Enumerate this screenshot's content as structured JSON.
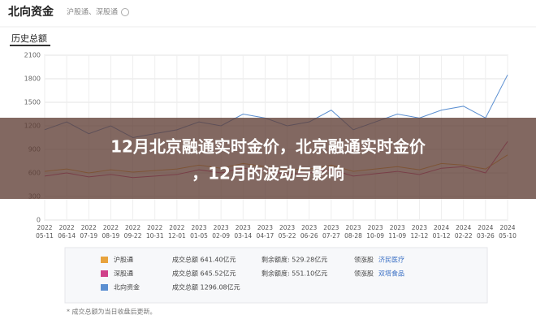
{
  "header": {
    "title": "北向资金",
    "subtitle": "沪股通、深股通",
    "section": "历史总额"
  },
  "chart_data": {
    "type": "line",
    "categories": [
      [
        "2022",
        "05-11"
      ],
      [
        "2022",
        "06-14"
      ],
      [
        "2022",
        "07-19"
      ],
      [
        "2022",
        "08-19"
      ],
      [
        "2022",
        "09-22"
      ],
      [
        "2022",
        "10-31"
      ],
      [
        "2022",
        "12-01"
      ],
      [
        "2023",
        "01-05"
      ],
      [
        "2023",
        "02-09"
      ],
      [
        "2023",
        "03-14"
      ],
      [
        "2023",
        "04-17"
      ],
      [
        "2023",
        "05-22"
      ],
      [
        "2023",
        "06-26"
      ],
      [
        "2023",
        "07-27"
      ],
      [
        "2023",
        "08-28"
      ],
      [
        "2023",
        "10-09"
      ],
      [
        "2023",
        "11-09"
      ],
      [
        "2023",
        "12-12"
      ],
      [
        "2024",
        "01-12"
      ],
      [
        "2024",
        "02-22"
      ],
      [
        "2024",
        "03-26"
      ],
      [
        "2024",
        "05-10"
      ]
    ],
    "series": [
      {
        "name": "沪股通",
        "color": "#e8a33d",
        "values": [
          620,
          650,
          600,
          640,
          610,
          630,
          650,
          700,
          660,
          720,
          680,
          640,
          650,
          700,
          620,
          650,
          680,
          640,
          720,
          700,
          650,
          830
        ]
      },
      {
        "name": "深股通",
        "color": "#d0418a",
        "values": [
          560,
          600,
          550,
          580,
          540,
          560,
          580,
          640,
          600,
          660,
          630,
          580,
          600,
          640,
          560,
          590,
          620,
          580,
          660,
          680,
          600,
          1000
        ]
      },
      {
        "name": "北向资金",
        "color": "#5b8fd1",
        "values": [
          1150,
          1250,
          1100,
          1200,
          1050,
          1100,
          1150,
          1250,
          1200,
          1350,
          1300,
          1200,
          1250,
          1400,
          1150,
          1250,
          1350,
          1300,
          1400,
          1450,
          1300,
          1850
        ]
      }
    ],
    "ylim": [
      0,
      2100
    ],
    "yticks": [
      0,
      300,
      600,
      900,
      1200,
      1500,
      1800,
      2100
    ],
    "grid": true
  },
  "summary": [
    [
      "成交总额 641.40亿元",
      "剩余额度: 529.28亿元",
      "领涨股",
      "济民医疗"
    ],
    [
      "成交总额 645.52亿元",
      "剩余额度: 551.10亿元",
      "领涨股",
      "双塔食品"
    ],
    [
      "成交总额 1296.08亿元"
    ]
  ],
  "footnote": "* 成交总额为当日收盘后更新。",
  "banner": [
    "12月北京融通实时金价，北京融通实时金价",
    "，12月的波动与影响"
  ]
}
